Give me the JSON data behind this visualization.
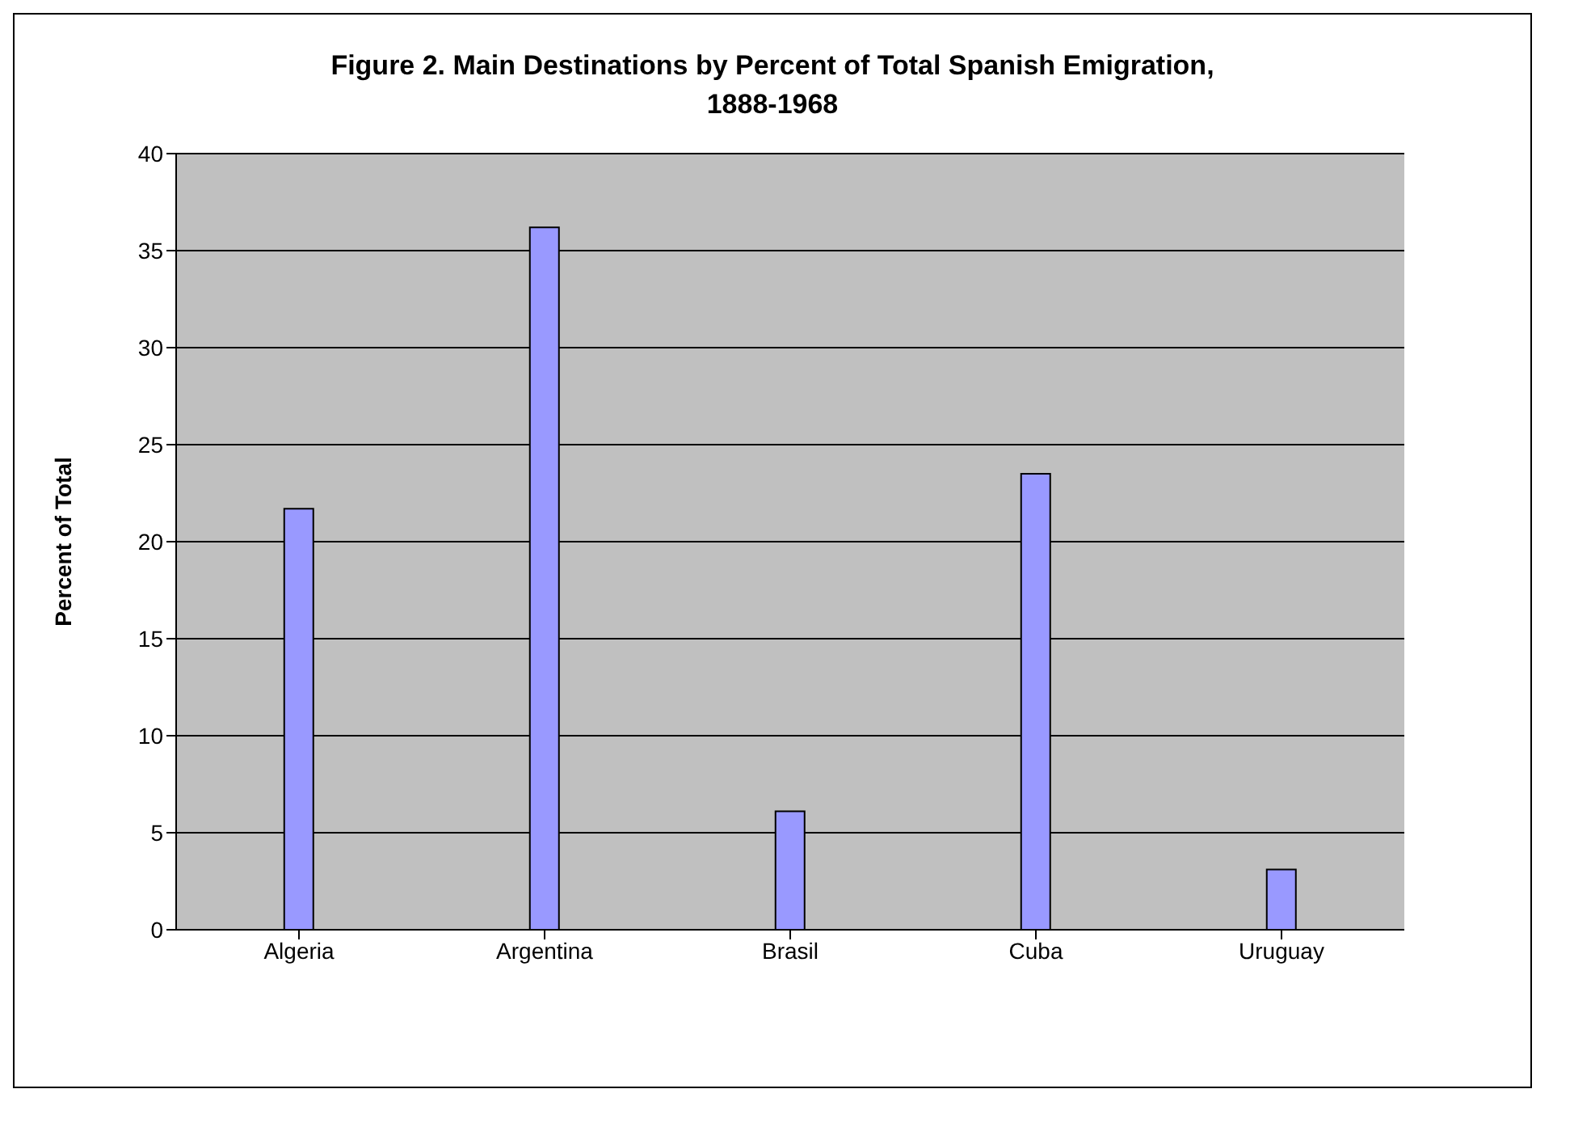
{
  "chart_data": {
    "type": "bar",
    "title": "Figure 2. Main Destinations by Percent of Total Spanish Emigration, 1888-1968",
    "ylabel": "Percent of Total",
    "categories": [
      "Algeria",
      "Argentina",
      "Brasil",
      "Cuba",
      "Uruguay"
    ],
    "values": [
      21.7,
      36.2,
      6.1,
      23.5,
      3.1
    ],
    "color": "#9999ff",
    "ylim": [
      0,
      40
    ],
    "yticks": [
      0,
      5,
      10,
      15,
      20,
      25,
      30,
      35,
      40
    ],
    "grid": "y"
  }
}
